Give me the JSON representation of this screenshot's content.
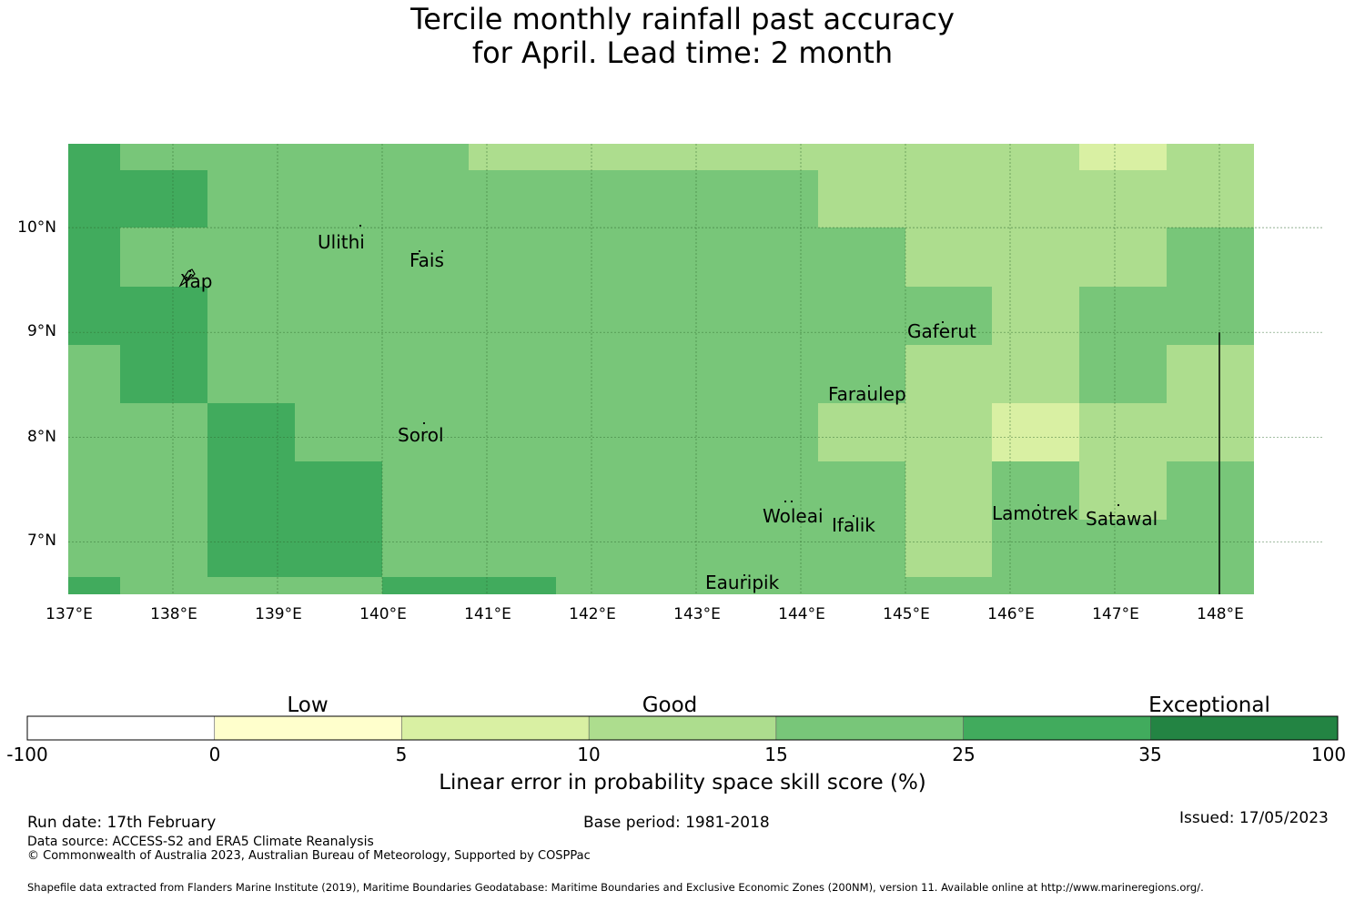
{
  "title": {
    "line1": "Tercile monthly rainfall past accuracy",
    "line2": "for April. Lead time: 2 month"
  },
  "map": {
    "lon_range": [
      137,
      149
    ],
    "lat_range": [
      6.5,
      10.8
    ],
    "cell_deg": 0.833,
    "lat_ticks": [
      "10°N",
      "9°N",
      "8°N",
      "7°N"
    ],
    "lon_ticks": [
      "137°E",
      "138°E",
      "139°E",
      "140°E",
      "141°E",
      "142°E",
      "143°E",
      "144°E",
      "145°E",
      "146°E",
      "147°E",
      "148°E"
    ],
    "skill_grid_top_to_bottom": [
      [
        30,
        20,
        20,
        20,
        20,
        12,
        12,
        12,
        12,
        12,
        12,
        12,
        7,
        12
      ],
      [
        30,
        30,
        20,
        20,
        20,
        20,
        20,
        20,
        20,
        12,
        12,
        12,
        12,
        12
      ],
      [
        30,
        20,
        20,
        20,
        20,
        20,
        20,
        20,
        20,
        20,
        12,
        12,
        12,
        20
      ],
      [
        30,
        30,
        20,
        20,
        20,
        20,
        20,
        20,
        20,
        20,
        20,
        12,
        20,
        20
      ],
      [
        20,
        30,
        20,
        20,
        20,
        20,
        20,
        20,
        20,
        20,
        12,
        12,
        20,
        12
      ],
      [
        20,
        20,
        30,
        20,
        20,
        20,
        20,
        20,
        20,
        12,
        12,
        7,
        12,
        12
      ],
      [
        20,
        20,
        30,
        30,
        20,
        20,
        20,
        20,
        20,
        20,
        12,
        20,
        12,
        20
      ],
      [
        20,
        20,
        30,
        30,
        20,
        20,
        20,
        20,
        20,
        20,
        12,
        20,
        20,
        20
      ],
      [
        30,
        20,
        20,
        20,
        30,
        30,
        20,
        20,
        20,
        20,
        20,
        20,
        20,
        20
      ]
    ],
    "places": [
      {
        "name": "Ulithi",
        "lon": 139.75,
        "lat": 9.9
      },
      {
        "name": "Fais",
        "lon": 140.5,
        "lat": 9.78
      },
      {
        "name": "Yap",
        "lon": 138.15,
        "lat": 9.55
      },
      {
        "name": "Gaferut",
        "lon": 145.38,
        "lat": 9.1
      },
      {
        "name": "Faraulep",
        "lon": 144.53,
        "lat": 8.55
      },
      {
        "name": "Sorol",
        "lon": 140.4,
        "lat": 8.13
      },
      {
        "name": "Woleai",
        "lon": 143.9,
        "lat": 7.37
      },
      {
        "name": "Ifalik",
        "lon": 144.45,
        "lat": 7.25
      },
      {
        "name": "Lamotrek",
        "lon": 146.33,
        "lat": 7.45
      },
      {
        "name": "Satawal",
        "lon": 147.03,
        "lat": 7.35
      },
      {
        "name": "Eauripik",
        "lon": 143.05,
        "lat": 6.68
      }
    ],
    "boundary_line": {
      "lon": 148.0,
      "lat_from": 6.5,
      "lat_to": 9.0
    }
  },
  "colorbar": {
    "categories": [
      "Low",
      "Good",
      "Exceptional"
    ],
    "ticks": [
      "-100",
      "0",
      "5",
      "10",
      "15",
      "25",
      "35",
      "100"
    ],
    "colors": [
      "#ffffff",
      "#ffffcc",
      "#d9f0a3",
      "#addd8e",
      "#78c679",
      "#41ab5d",
      "#238443"
    ],
    "label": "Linear error in probability space skill score (%)"
  },
  "footer": {
    "run_date": "Run date: 17th February",
    "base_period": "Base period: 1981-2018",
    "issued": "Issued: 17/05/2023",
    "data_source": "Data source: ACCESS-S2 and ERA5 Climate Reanalysis",
    "copyright": "© Commonwealth of Australia 2023, Australian Bureau of Meteorology, Supported by COSPPac",
    "shapefile": "Shapefile data extracted from Flanders Marine Institute (2019), Maritime Boundaries Geodatabase: Maritime Boundaries and Exclusive Economic Zones (200NM), version 11. Available online at http://www.marineregions.org/."
  }
}
